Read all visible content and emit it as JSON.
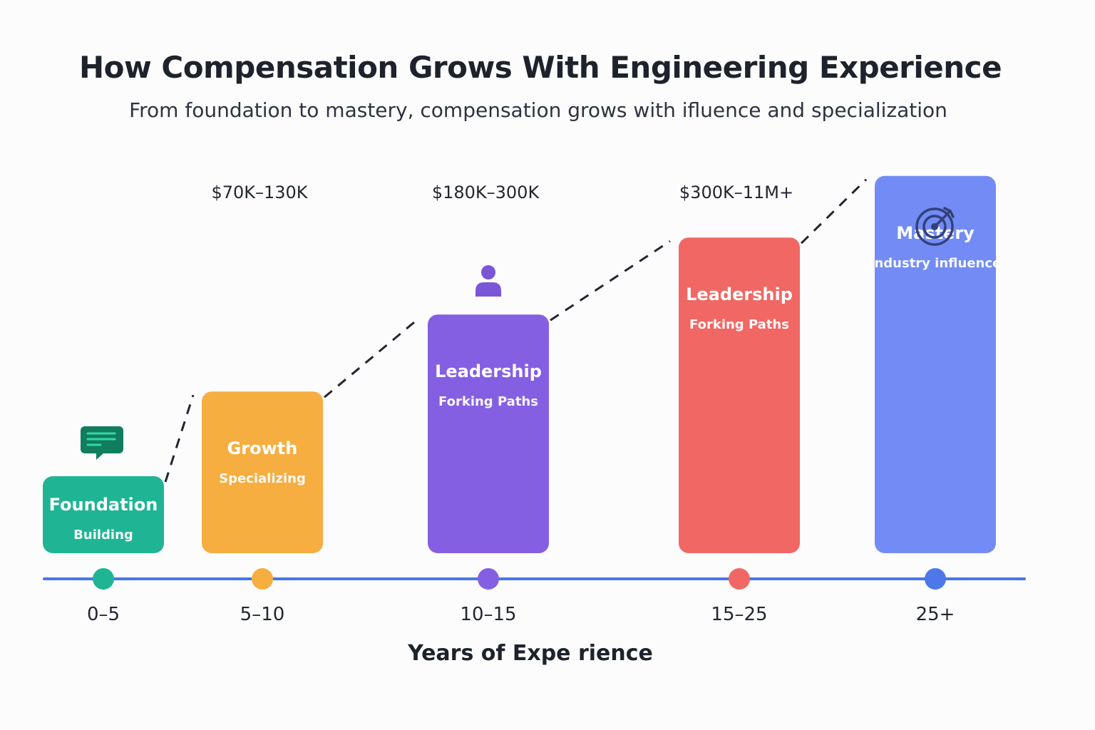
{
  "title": "How Compensation Grows With Engineering Experience",
  "subtitle": "From foundation to mastery, compensation grows with ifluence and specialization",
  "chart_data": {
    "type": "bar",
    "categories": [
      "0–5",
      "5–10",
      "10–15",
      "15–25",
      "25+"
    ],
    "xlabel": "Years of Expe rience",
    "ylabel": "",
    "bars": [
      {
        "category": "0–5",
        "stage": "Foundation",
        "desc": "Building",
        "value": 1.0,
        "color": "#1fb594",
        "dot": "#1fb594",
        "range": "",
        "icon": "chat-icon"
      },
      {
        "category": "5–10",
        "stage": "Growth",
        "desc": "Specializing",
        "value": 2.1,
        "color": "#f6ae41",
        "dot": "#f6ae41",
        "range": "$70K–130K",
        "icon": ""
      },
      {
        "category": "10–15",
        "stage": "Leadership",
        "desc": "Forking Paths",
        "value": 3.1,
        "color": "#855fe2",
        "dot": "#855fe2",
        "range": "$180K–300K",
        "icon": "person-icon"
      },
      {
        "category": "15–25",
        "stage": "Leadership",
        "desc": "Forking Paths",
        "value": 4.1,
        "color": "#f06764",
        "dot": "#f06764",
        "range": "$300K–11M+",
        "icon": ""
      },
      {
        "category": "25+",
        "stage": "Mastery",
        "desc": "Industry influence",
        "value": 4.9,
        "color": "#738cf5",
        "dot": "#4e78ea",
        "range": "",
        "icon": "target-icon"
      }
    ],
    "ylim": [
      0,
      5
    ],
    "trend_line": "dashed",
    "axis_color": "#4776e8",
    "grid": false,
    "legend": "none"
  }
}
